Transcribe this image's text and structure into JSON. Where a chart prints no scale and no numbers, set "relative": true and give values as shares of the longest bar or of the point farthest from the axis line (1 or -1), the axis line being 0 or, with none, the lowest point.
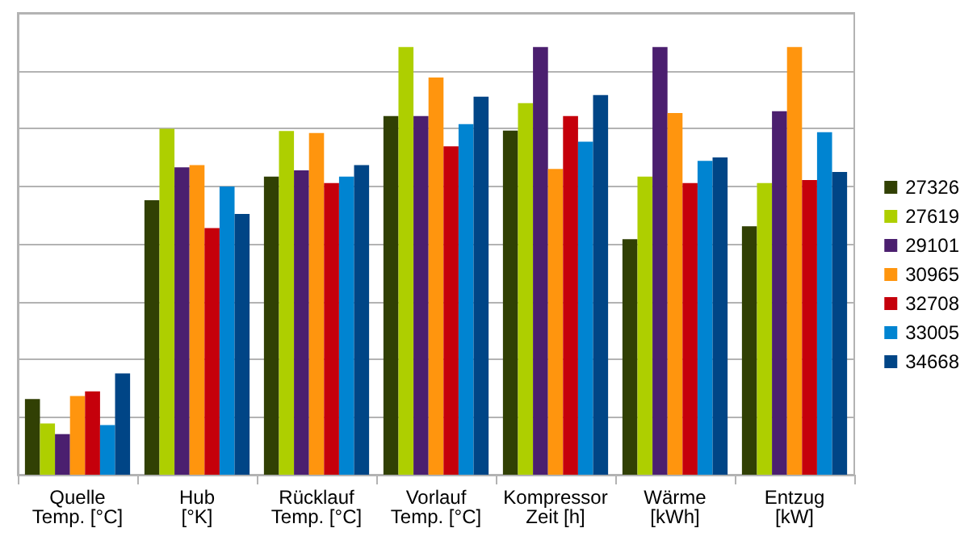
{
  "chart_data": {
    "type": "bar",
    "relative": true,
    "grid": "y",
    "legend": "right",
    "categories": [
      "Quelle\nTemp. [°C]",
      "Hub\n[°K]",
      "Rücklauf\nTemp. [°C]",
      "Vorlauf\nTemp. [°C]",
      "Kompressor\nZeit [h]",
      "Wärme\n[kWh]",
      "Entzug\n[kW]"
    ],
    "series": [
      {
        "name": "27326",
        "color": "#314004",
        "values": [
          0.177,
          0.642,
          0.697,
          0.839,
          0.805,
          0.551,
          0.581
        ]
      },
      {
        "name": "27619",
        "color": "#aecf00",
        "values": [
          0.12,
          0.809,
          0.804,
          1,
          0.869,
          0.697,
          0.682
        ]
      },
      {
        "name": "29101",
        "color": "#4b1f6f",
        "values": [
          0.095,
          0.719,
          0.712,
          0.839,
          1,
          1,
          0.85
        ]
      },
      {
        "name": "30965",
        "color": "#ff950e",
        "values": [
          0.184,
          0.724,
          0.799,
          0.929,
          0.715,
          0.846,
          1
        ]
      },
      {
        "name": "32708",
        "color": "#c5000b",
        "values": [
          0.195,
          0.577,
          0.682,
          0.768,
          0.839,
          0.682,
          0.689
        ]
      },
      {
        "name": "33005",
        "color": "#0084d1",
        "values": [
          0.116,
          0.674,
          0.697,
          0.82,
          0.779,
          0.734,
          0.801
        ]
      },
      {
        "name": "34668",
        "color": "#004586",
        "values": [
          0.237,
          0.61,
          0.724,
          0.884,
          0.888,
          0.742,
          0.708
        ]
      }
    ]
  }
}
